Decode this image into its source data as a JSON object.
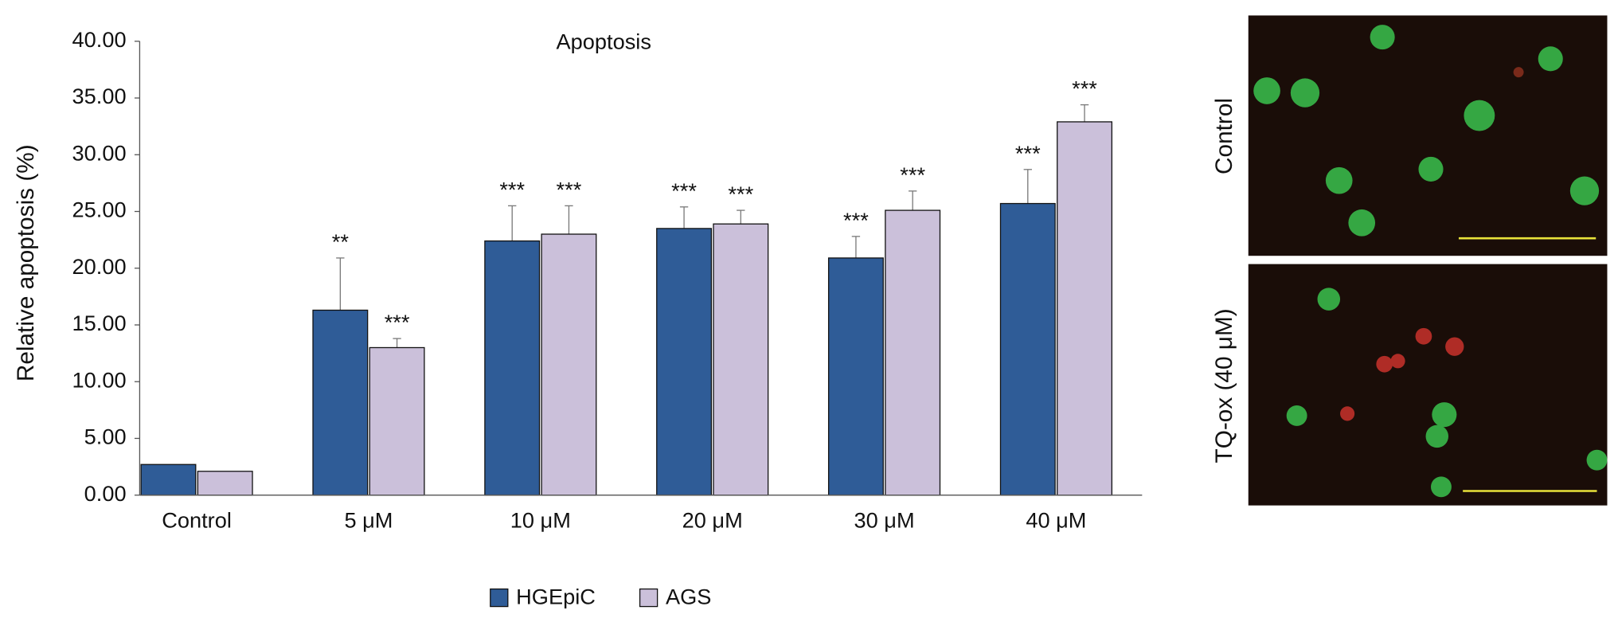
{
  "chart_data": {
    "type": "bar",
    "title": "Apoptosis",
    "y_label": "Relative apoptosis (%)",
    "categories": [
      "Control",
      "5 μM",
      "10 μM",
      "20 μM",
      "30 μM",
      "40 μM"
    ],
    "series": [
      {
        "name": "HGEpiC",
        "color": "#2f5c97",
        "values": [
          2.7,
          16.3,
          22.4,
          23.5,
          20.9,
          25.7
        ],
        "errors": [
          0,
          4.6,
          3.1,
          1.9,
          1.9,
          3.0
        ],
        "annotations": [
          null,
          "**",
          "***",
          "***",
          "***",
          "***"
        ]
      },
      {
        "name": "AGS",
        "color": "#cbc0da",
        "values": [
          2.1,
          13.0,
          23.0,
          23.9,
          25.1,
          32.9
        ],
        "errors": [
          0,
          0.8,
          2.5,
          1.2,
          1.7,
          1.5
        ],
        "annotations": [
          null,
          "***",
          "***",
          "***",
          "***",
          "***"
        ]
      }
    ],
    "ylim": [
      0,
      40
    ],
    "yticks": [
      {
        "value": 0,
        "label": "0.00"
      },
      {
        "value": 5,
        "label": "5.00"
      },
      {
        "value": 10,
        "label": "10.00"
      },
      {
        "value": 15,
        "label": "15.00"
      },
      {
        "value": 20,
        "label": "20.00"
      },
      {
        "value": 25,
        "label": "25.00"
      },
      {
        "value": 30,
        "label": "30.00"
      },
      {
        "value": 35,
        "label": "35.00"
      },
      {
        "value": 40,
        "label": "40.00"
      }
    ],
    "legend": "bottom"
  },
  "images": [
    {
      "label": "Control"
    },
    {
      "label": "TQ-ox (40 μM)"
    }
  ]
}
